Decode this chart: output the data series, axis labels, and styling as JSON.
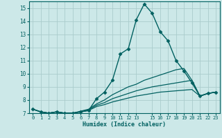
{
  "xlabel": "Humidex (Indice chaleur)",
  "bg_color": "#cce8e8",
  "grid_color": "#aacccc",
  "line_color": "#006060",
  "xlim": [
    -0.5,
    23.5
  ],
  "ylim": [
    7,
    15.5
  ],
  "yticks": [
    7,
    8,
    9,
    10,
    11,
    12,
    13,
    14,
    15
  ],
  "xticks": [
    0,
    1,
    2,
    3,
    4,
    5,
    6,
    7,
    8,
    9,
    10,
    11,
    12,
    13,
    15,
    16,
    17,
    18,
    19,
    20,
    21,
    22,
    23
  ],
  "series": [
    {
      "x": [
        0,
        1,
        2,
        3,
        4,
        5,
        6,
        7,
        8,
        9,
        10,
        11,
        12,
        13,
        14,
        15,
        16,
        17,
        18,
        19,
        20,
        21,
        22,
        23
      ],
      "y": [
        7.3,
        7.1,
        7.0,
        7.1,
        7.0,
        7.0,
        7.1,
        7.2,
        8.1,
        8.6,
        9.5,
        11.5,
        11.9,
        14.1,
        15.3,
        14.6,
        13.2,
        12.5,
        11.0,
        10.2,
        9.3,
        8.3,
        8.5,
        8.6
      ],
      "marker": "D",
      "markersize": 2.5,
      "lw": 1.0
    },
    {
      "x": [
        0,
        1,
        2,
        3,
        4,
        5,
        6,
        7,
        8,
        9,
        10,
        11,
        12,
        13,
        14,
        15,
        16,
        17,
        18,
        19,
        20,
        21,
        22,
        23
      ],
      "y": [
        7.3,
        7.1,
        7.0,
        7.1,
        7.0,
        7.0,
        7.15,
        7.3,
        7.7,
        8.0,
        8.4,
        8.7,
        9.0,
        9.2,
        9.5,
        9.7,
        9.9,
        10.1,
        10.3,
        10.4,
        9.5,
        8.3,
        8.5,
        8.6
      ],
      "marker": null,
      "markersize": 0,
      "lw": 0.9
    },
    {
      "x": [
        0,
        1,
        2,
        3,
        4,
        5,
        6,
        7,
        8,
        9,
        10,
        11,
        12,
        13,
        14,
        15,
        16,
        17,
        18,
        19,
        20,
        21,
        22,
        23
      ],
      "y": [
        7.3,
        7.1,
        7.0,
        7.1,
        7.0,
        7.0,
        7.1,
        7.25,
        7.6,
        7.8,
        8.1,
        8.3,
        8.5,
        8.7,
        8.85,
        9.0,
        9.1,
        9.2,
        9.3,
        9.4,
        9.5,
        8.3,
        8.5,
        8.6
      ],
      "marker": null,
      "markersize": 0,
      "lw": 0.9
    },
    {
      "x": [
        0,
        1,
        2,
        3,
        4,
        5,
        6,
        7,
        8,
        9,
        10,
        11,
        12,
        13,
        14,
        15,
        16,
        17,
        18,
        19,
        20,
        21,
        22,
        23
      ],
      "y": [
        7.3,
        7.1,
        7.0,
        7.1,
        7.0,
        7.0,
        7.1,
        7.2,
        7.5,
        7.65,
        7.85,
        8.0,
        8.15,
        8.3,
        8.4,
        8.5,
        8.6,
        8.65,
        8.7,
        8.75,
        8.8,
        8.3,
        8.5,
        8.6
      ],
      "marker": null,
      "markersize": 0,
      "lw": 0.9
    }
  ]
}
